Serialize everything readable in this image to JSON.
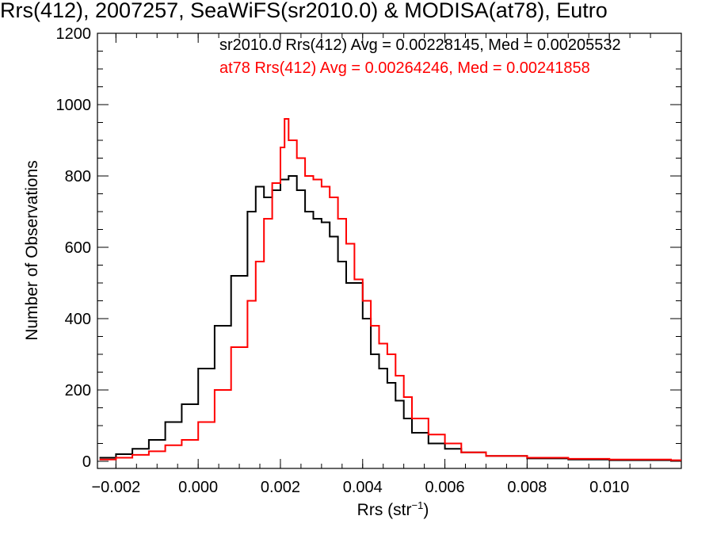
{
  "chart_data": {
    "type": "histogram-step",
    "title": "Rrs(412), 2007257, SeaWiFS(sr2010.0) & MODISA(at78), Eutro",
    "xlabel": "Rrs (str",
    "xlabel_sup": "−1",
    "xlabel_close": ")",
    "ylabel": "Number of Observations",
    "xlim": [
      -0.00245,
      0.01175
    ],
    "ylim": [
      -20,
      1200
    ],
    "x_ticks": [
      -0.002,
      0.0,
      0.002,
      0.004,
      0.006,
      0.008,
      0.01
    ],
    "x_tick_labels": [
      "−0.002",
      "0.000",
      "0.002",
      "0.004",
      "0.006",
      "0.008",
      "0.010"
    ],
    "y_ticks": [
      0,
      200,
      400,
      600,
      800,
      1000,
      1200
    ],
    "y_tick_labels": [
      "0",
      "200",
      "400",
      "600",
      "800",
      "1000",
      "1200"
    ],
    "grid": false,
    "legend_placement": "top",
    "series": [
      {
        "name": "sr2010.0 Rrs(412) Avg = 0.00228145, Med = 0.00205532",
        "color": "#000000",
        "points": [
          [
            -0.0024,
            10
          ],
          [
            -0.002,
            20
          ],
          [
            -0.0016,
            35
          ],
          [
            -0.0012,
            60
          ],
          [
            -0.0008,
            110
          ],
          [
            -0.0004,
            160
          ],
          [
            0.0,
            260
          ],
          [
            0.0004,
            380
          ],
          [
            0.0008,
            520
          ],
          [
            0.0012,
            700
          ],
          [
            0.0014,
            770
          ],
          [
            0.0016,
            740
          ],
          [
            0.0018,
            760
          ],
          [
            0.002,
            790
          ],
          [
            0.0022,
            800
          ],
          [
            0.0024,
            760
          ],
          [
            0.0026,
            700
          ],
          [
            0.0028,
            680
          ],
          [
            0.003,
            670
          ],
          [
            0.0032,
            630
          ],
          [
            0.0034,
            560
          ],
          [
            0.0036,
            500
          ],
          [
            0.004,
            400
          ],
          [
            0.0042,
            300
          ],
          [
            0.0044,
            260
          ],
          [
            0.0046,
            220
          ],
          [
            0.0048,
            170
          ],
          [
            0.005,
            120
          ],
          [
            0.0052,
            80
          ],
          [
            0.0056,
            50
          ],
          [
            0.006,
            35
          ],
          [
            0.0064,
            25
          ],
          [
            0.007,
            15
          ],
          [
            0.008,
            8
          ],
          [
            0.009,
            5
          ],
          [
            0.01,
            3
          ],
          [
            0.0115,
            2
          ]
        ]
      },
      {
        "name": "at78 Rrs(412) Avg = 0.00264246, Med = 0.00241858",
        "color": "#ff0000",
        "points": [
          [
            -0.0024,
            5
          ],
          [
            -0.002,
            10
          ],
          [
            -0.0016,
            18
          ],
          [
            -0.0012,
            28
          ],
          [
            -0.0008,
            45
          ],
          [
            -0.0004,
            60
          ],
          [
            0.0,
            110
          ],
          [
            0.0004,
            200
          ],
          [
            0.0008,
            320
          ],
          [
            0.0012,
            450
          ],
          [
            0.0014,
            560
          ],
          [
            0.0016,
            680
          ],
          [
            0.0018,
            780
          ],
          [
            0.002,
            880
          ],
          [
            0.0021,
            960
          ],
          [
            0.0022,
            900
          ],
          [
            0.0024,
            850
          ],
          [
            0.0026,
            800
          ],
          [
            0.0028,
            790
          ],
          [
            0.003,
            770
          ],
          [
            0.0032,
            740
          ],
          [
            0.0034,
            680
          ],
          [
            0.0036,
            610
          ],
          [
            0.0038,
            510
          ],
          [
            0.004,
            450
          ],
          [
            0.0042,
            380
          ],
          [
            0.0044,
            330
          ],
          [
            0.0046,
            300
          ],
          [
            0.0048,
            240
          ],
          [
            0.005,
            180
          ],
          [
            0.0052,
            120
          ],
          [
            0.0056,
            75
          ],
          [
            0.006,
            50
          ],
          [
            0.0064,
            25
          ],
          [
            0.007,
            15
          ],
          [
            0.008,
            10
          ],
          [
            0.009,
            7
          ],
          [
            0.01,
            5
          ],
          [
            0.0115,
            3
          ]
        ]
      }
    ]
  }
}
